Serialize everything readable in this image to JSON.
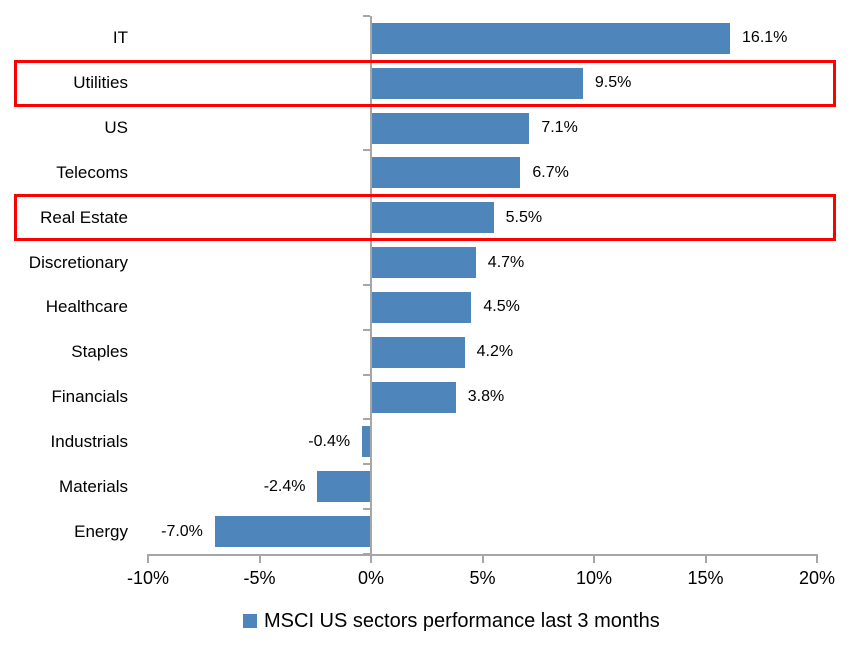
{
  "chart_data": {
    "type": "bar",
    "orientation": "horizontal",
    "title": "",
    "xlabel": "",
    "ylabel": "",
    "categories": [
      "IT",
      "Utilities",
      "US",
      "Telecoms",
      "Real Estate",
      "Discretionary",
      "Healthcare",
      "Staples",
      "Financials",
      "Industrials",
      "Materials",
      "Energy"
    ],
    "values": [
      16.1,
      9.5,
      7.1,
      6.7,
      5.5,
      4.7,
      4.5,
      4.2,
      3.8,
      -0.4,
      -2.4,
      -7.0
    ],
    "value_labels": [
      "16.1%",
      "9.5%",
      "7.1%",
      "6.7%",
      "5.5%",
      "4.7%",
      "4.5%",
      "4.2%",
      "3.8%",
      "-0.4%",
      "-2.4%",
      "-7.0%"
    ],
    "highlighted_categories": [
      "Utilities",
      "Real Estate"
    ],
    "x_tick_labels": [
      "-10%",
      "-5%",
      "0%",
      "5%",
      "10%",
      "15%",
      "20%"
    ],
    "x_tick_values": [
      -10,
      -5,
      0,
      5,
      10,
      15,
      20
    ],
    "xlim": [
      -10,
      20
    ],
    "grid": false,
    "legend": {
      "position": "bottom",
      "label": "MSCI US sectors performance last 3 months"
    },
    "colors": {
      "bar": "#4e86bc",
      "highlight_box": "#ff0000",
      "axis": "#a6a6a6",
      "text": "#000000"
    }
  }
}
